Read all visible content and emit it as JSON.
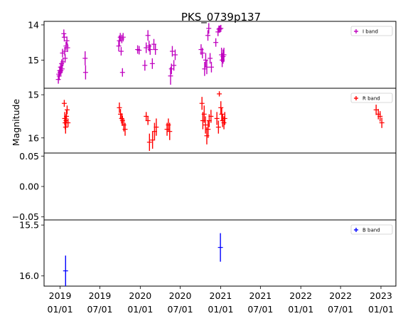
{
  "chart_data": {
    "type": "scatter",
    "title": "PKS_0739p137",
    "ylabel": "Magnitude",
    "xlabel": "",
    "x_tick_labels": [
      [
        "2019",
        "01/01"
      ],
      [
        "2019",
        "07/01"
      ],
      [
        "2020",
        "01/01"
      ],
      [
        "2020",
        "07/01"
      ],
      [
        "2021",
        "01/01"
      ],
      [
        "2021",
        "07/01"
      ],
      [
        "2022",
        "01/01"
      ],
      [
        "2022",
        "07/01"
      ],
      [
        "2023",
        "01/01"
      ]
    ],
    "x_tick_dates": [
      "2019-01-01",
      "2019-07-01",
      "2020-01-01",
      "2020-07-01",
      "2021-01-01",
      "2021-07-01",
      "2022-01-01",
      "2022-07-01",
      "2023-01-01"
    ],
    "xlim": [
      "2018-10-20",
      "2023-03-10"
    ],
    "grid": false,
    "panels": [
      {
        "name": "I",
        "ylim": [
          15.8,
          13.9
        ],
        "y_inverted": true,
        "yticks": [
          14.0,
          15.0
        ],
        "ytick_labels": [
          "14",
          "15"
        ],
        "extra_ytick_labels": [
          {
            "value": 15.0,
            "label": "15"
          }
        ],
        "legend": {
          "label": "I band",
          "color": "#bf00bf",
          "position": "top-right"
        },
        "series": [
          {
            "color": "#bf00bf",
            "points": [
              {
                "x": "2018-12-24",
                "y": 15.55,
                "err": 0.12
              },
              {
                "x": "2018-12-26",
                "y": 15.4,
                "err": 0.12
              },
              {
                "x": "2018-12-28",
                "y": 15.45,
                "err": 0.12
              },
              {
                "x": "2018-12-30",
                "y": 15.3,
                "err": 0.12
              },
              {
                "x": "2019-01-01",
                "y": 15.35,
                "err": 0.12
              },
              {
                "x": "2019-01-03",
                "y": 15.2,
                "err": 0.12
              },
              {
                "x": "2019-01-05",
                "y": 15.3,
                "err": 0.12
              },
              {
                "x": "2019-01-08",
                "y": 15.1,
                "err": 0.12
              },
              {
                "x": "2019-01-10",
                "y": 15.25,
                "err": 0.12
              },
              {
                "x": "2019-01-12",
                "y": 14.8,
                "err": 0.12
              },
              {
                "x": "2019-01-14",
                "y": 15.05,
                "err": 0.12
              },
              {
                "x": "2019-01-18",
                "y": 14.25,
                "err": 0.12
              },
              {
                "x": "2019-01-20",
                "y": 14.35,
                "err": 0.12
              },
              {
                "x": "2019-01-22",
                "y": 14.75,
                "err": 0.12
              },
              {
                "x": "2019-01-24",
                "y": 14.95,
                "err": 0.12
              },
              {
                "x": "2019-01-28",
                "y": 14.6,
                "err": 0.12
              },
              {
                "x": "2019-02-01",
                "y": 14.45,
                "err": 0.12
              },
              {
                "x": "2019-02-04",
                "y": 14.65,
                "err": 0.12
              },
              {
                "x": "2019-04-25",
                "y": 14.95,
                "err": 0.2
              },
              {
                "x": "2019-04-27",
                "y": 15.35,
                "err": 0.2
              },
              {
                "x": "2019-09-25",
                "y": 14.6,
                "err": 0.15
              },
              {
                "x": "2019-09-28",
                "y": 14.45,
                "err": 0.15
              },
              {
                "x": "2019-10-02",
                "y": 14.35,
                "err": 0.12
              },
              {
                "x": "2019-10-06",
                "y": 14.75,
                "err": 0.12
              },
              {
                "x": "2019-10-09",
                "y": 14.4,
                "err": 0.12
              },
              {
                "x": "2019-10-12",
                "y": 15.35,
                "err": 0.12
              },
              {
                "x": "2019-10-15",
                "y": 14.35,
                "err": 0.12
              },
              {
                "x": "2019-12-20",
                "y": 14.7,
                "err": 0.12
              },
              {
                "x": "2019-12-27",
                "y": 14.72,
                "err": 0.12
              },
              {
                "x": "2020-01-22",
                "y": 15.15,
                "err": 0.15
              },
              {
                "x": "2020-01-28",
                "y": 14.65,
                "err": 0.15
              },
              {
                "x": "2020-02-05",
                "y": 14.3,
                "err": 0.15
              },
              {
                "x": "2020-02-10",
                "y": 14.6,
                "err": 0.15
              },
              {
                "x": "2020-02-15",
                "y": 14.7,
                "err": 0.15
              },
              {
                "x": "2020-02-25",
                "y": 15.1,
                "err": 0.15
              },
              {
                "x": "2020-03-03",
                "y": 14.55,
                "err": 0.15
              },
              {
                "x": "2020-03-10",
                "y": 14.7,
                "err": 0.15
              },
              {
                "x": "2020-05-18",
                "y": 15.45,
                "err": 0.25
              },
              {
                "x": "2020-05-22",
                "y": 15.25,
                "err": 0.15
              },
              {
                "x": "2020-05-26",
                "y": 14.75,
                "err": 0.15
              },
              {
                "x": "2020-06-02",
                "y": 15.15,
                "err": 0.15
              },
              {
                "x": "2020-06-08",
                "y": 14.85,
                "err": 0.15
              },
              {
                "x": "2020-10-04",
                "y": 14.7,
                "err": 0.15
              },
              {
                "x": "2020-10-10",
                "y": 14.8,
                "err": 0.15
              },
              {
                "x": "2020-10-20",
                "y": 15.25,
                "err": 0.2
              },
              {
                "x": "2020-10-25",
                "y": 15.0,
                "err": 0.2
              },
              {
                "x": "2020-10-30",
                "y": 15.2,
                "err": 0.2
              },
              {
                "x": "2020-11-04",
                "y": 14.3,
                "err": 0.15
              },
              {
                "x": "2020-11-08",
                "y": 14.1,
                "err": 0.15
              },
              {
                "x": "2020-11-14",
                "y": 14.95,
                "err": 0.15
              },
              {
                "x": "2020-11-20",
                "y": 15.2,
                "err": 0.15
              },
              {
                "x": "2020-12-10",
                "y": 14.5,
                "err": 0.12
              },
              {
                "x": "2020-12-20",
                "y": 14.2,
                "err": 0.12
              },
              {
                "x": "2020-12-24",
                "y": 14.12,
                "err": 0.1
              },
              {
                "x": "2020-12-28",
                "y": 14.12,
                "err": 0.1
              },
              {
                "x": "2021-01-02",
                "y": 14.1,
                "err": 0.1
              },
              {
                "x": "2021-01-05",
                "y": 14.85,
                "err": 0.2
              },
              {
                "x": "2021-01-08",
                "y": 15.0,
                "err": 0.2
              },
              {
                "x": "2021-01-12",
                "y": 14.9,
                "err": 0.2
              },
              {
                "x": "2021-01-16",
                "y": 14.85,
                "err": 0.2
              }
            ]
          }
        ]
      },
      {
        "name": "R",
        "ylim": [
          16.35,
          14.85
        ],
        "y_inverted": true,
        "yticks": [
          15.0,
          16.0
        ],
        "ytick_labels": [
          "15",
          "16"
        ],
        "legend": {
          "label": "R band",
          "color": "#ff0000",
          "position": "top-right"
        },
        "series": [
          {
            "color": "#ff0000",
            "points": [
              {
                "x": "2019-01-20",
                "y": 15.2,
                "err": 0.08
              },
              {
                "x": "2019-01-22",
                "y": 15.55,
                "err": 0.15
              },
              {
                "x": "2019-01-24",
                "y": 15.65,
                "err": 0.15
              },
              {
                "x": "2019-01-26",
                "y": 15.75,
                "err": 0.15
              },
              {
                "x": "2019-01-28",
                "y": 15.6,
                "err": 0.15
              },
              {
                "x": "2019-01-30",
                "y": 15.5,
                "err": 0.15
              },
              {
                "x": "2019-02-02",
                "y": 15.35,
                "err": 0.1
              },
              {
                "x": "2019-02-06",
                "y": 15.65,
                "err": 0.1
              },
              {
                "x": "2019-09-28",
                "y": 15.3,
                "err": 0.12
              },
              {
                "x": "2019-10-03",
                "y": 15.45,
                "err": 0.12
              },
              {
                "x": "2019-10-08",
                "y": 15.55,
                "err": 0.12
              },
              {
                "x": "2019-10-12",
                "y": 15.6,
                "err": 0.12
              },
              {
                "x": "2019-10-18",
                "y": 15.7,
                "err": 0.15
              },
              {
                "x": "2019-10-24",
                "y": 15.8,
                "err": 0.15
              },
              {
                "x": "2020-01-28",
                "y": 15.5,
                "err": 0.1
              },
              {
                "x": "2020-02-05",
                "y": 15.6,
                "err": 0.1
              },
              {
                "x": "2020-02-12",
                "y": 16.1,
                "err": 0.2
              },
              {
                "x": "2020-02-26",
                "y": 16.05,
                "err": 0.2
              },
              {
                "x": "2020-03-06",
                "y": 15.85,
                "err": 0.2
              },
              {
                "x": "2020-03-14",
                "y": 15.75,
                "err": 0.2
              },
              {
                "x": "2020-05-02",
                "y": 15.8,
                "err": 0.15
              },
              {
                "x": "2020-05-08",
                "y": 15.7,
                "err": 0.15
              },
              {
                "x": "2020-05-14",
                "y": 15.85,
                "err": 0.2
              },
              {
                "x": "2020-10-08",
                "y": 15.2,
                "err": 0.15
              },
              {
                "x": "2020-10-12",
                "y": 15.6,
                "err": 0.2
              },
              {
                "x": "2020-10-18",
                "y": 15.45,
                "err": 0.2
              },
              {
                "x": "2020-10-24",
                "y": 15.7,
                "err": 0.2
              },
              {
                "x": "2020-10-30",
                "y": 15.95,
                "err": 0.2
              },
              {
                "x": "2020-11-05",
                "y": 15.8,
                "err": 0.2
              },
              {
                "x": "2020-11-10",
                "y": 15.6,
                "err": 0.15
              },
              {
                "x": "2020-11-18",
                "y": 15.5,
                "err": 0.15
              },
              {
                "x": "2020-12-15",
                "y": 15.55,
                "err": 0.15
              },
              {
                "x": "2020-12-22",
                "y": 15.75,
                "err": 0.15
              },
              {
                "x": "2020-12-26",
                "y": 14.98,
                "err": 0.06
              },
              {
                "x": "2021-01-02",
                "y": 15.3,
                "err": 0.15
              },
              {
                "x": "2021-01-06",
                "y": 15.45,
                "err": 0.15
              },
              {
                "x": "2021-01-10",
                "y": 15.6,
                "err": 0.15
              },
              {
                "x": "2021-01-16",
                "y": 15.65,
                "err": 0.15
              },
              {
                "x": "2021-01-20",
                "y": 15.55,
                "err": 0.15
              },
              {
                "x": "2022-12-10",
                "y": 15.35,
                "err": 0.12
              },
              {
                "x": "2022-12-20",
                "y": 15.45,
                "err": 0.12
              },
              {
                "x": "2022-12-28",
                "y": 15.5,
                "err": 0.12
              },
              {
                "x": "2023-01-05",
                "y": 15.65,
                "err": 0.12
              }
            ]
          }
        ]
      },
      {
        "name": "V",
        "ylim": [
          -0.055,
          0.055
        ],
        "y_inverted": false,
        "yticks": [
          0.05,
          0.0,
          -0.05
        ],
        "ytick_labels": [
          "0.05",
          "0.00",
          "−0.05"
        ],
        "legend": null,
        "series": []
      },
      {
        "name": "B",
        "ylim": [
          16.1,
          15.45
        ],
        "y_inverted": true,
        "yticks": [
          15.5,
          16.0
        ],
        "ytick_labels": [
          "15.5",
          "16.0"
        ],
        "legend": {
          "label": "B band",
          "color": "#0000ff",
          "position": "top-right"
        },
        "series": [
          {
            "color": "#0000ff",
            "points": [
              {
                "x": "2019-01-26",
                "y": 15.95,
                "err": 0.15
              },
              {
                "x": "2020-12-31",
                "y": 15.72,
                "err": 0.14
              }
            ]
          }
        ]
      }
    ]
  }
}
